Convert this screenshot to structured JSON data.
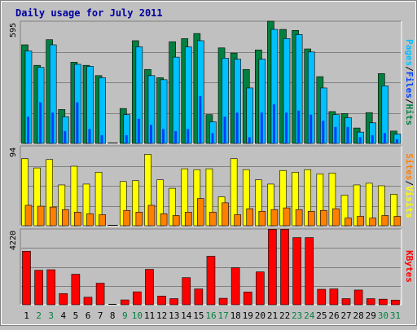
{
  "title": "Daily usage for July 2011",
  "colors": {
    "background": "#c0c0c0",
    "plot": "#c0c0c0",
    "title": "#0000a0",
    "hits": "#008040",
    "files": "#0040ff",
    "pages": "#00c0ff",
    "visits": "#ffff00",
    "sites": "#ff8000",
    "kbytes": "#ff0000",
    "weekend_day": "#008040",
    "weekday": "#000000"
  },
  "panels": {
    "top": {
      "ymax_label": "595",
      "legend": [
        {
          "text": "Pages",
          "color": "#00c0ff"
        },
        {
          "text": "/",
          "color": "#000000"
        },
        {
          "text": "Files",
          "color": "#0040ff"
        },
        {
          "text": "/",
          "color": "#000000"
        },
        {
          "text": "Hits",
          "color": "#008040"
        }
      ]
    },
    "mid": {
      "ymax_label": "94",
      "legend": [
        {
          "text": "Sites",
          "color": "#ff8000"
        },
        {
          "text": "/",
          "color": "#000000"
        },
        {
          "text": "Visits",
          "color": "#ffff00"
        }
      ]
    },
    "bottom": {
      "ymax_label": "4220",
      "legend": [
        {
          "text": "KBytes",
          "color": "#ff0000"
        }
      ]
    }
  },
  "chart_data": {
    "type": "bar",
    "title": "Daily usage for July 2011",
    "categories": [
      "1",
      "2",
      "3",
      "4",
      "5",
      "6",
      "7",
      "8",
      "9",
      "10",
      "11",
      "12",
      "13",
      "14",
      "15",
      "16",
      "17",
      "18",
      "19",
      "20",
      "21",
      "22",
      "23",
      "24",
      "25",
      "26",
      "27",
      "28",
      "29",
      "30",
      "31"
    ],
    "weekend_days": [
      "2",
      "3",
      "9",
      "10",
      "16",
      "17",
      "23",
      "24",
      "30",
      "31"
    ],
    "panels": [
      {
        "name": "hits-files-pages",
        "ylim": [
          0,
          595
        ],
        "series": [
          {
            "name": "Hits",
            "values": [
              480,
              380,
              505,
              165,
              395,
              380,
              330,
              0,
              170,
              500,
              360,
              320,
              495,
              510,
              535,
              140,
              465,
              440,
              360,
              455,
              595,
              555,
              550,
              460,
              325,
              155,
              145,
              75,
              150,
              340,
              60
            ]
          },
          {
            "name": "Files",
            "values": [
              130,
              200,
              150,
              60,
              200,
              70,
              40,
              0,
              40,
              120,
              90,
              70,
              60,
              70,
              230,
              50,
              130,
              150,
              30,
              150,
              190,
              150,
              160,
              140,
              110,
              80,
              80,
              30,
              40,
              50,
              20
            ]
          },
          {
            "name": "Pages",
            "values": [
              450,
              370,
              480,
              130,
              385,
              375,
              320,
              0,
              140,
              470,
              330,
              310,
              420,
              470,
              500,
              105,
              415,
              410,
              270,
              410,
              555,
              510,
              530,
              445,
              270,
              140,
              125,
              55,
              100,
              280,
              45
            ]
          }
        ]
      },
      {
        "name": "visits-sites",
        "ylim": [
          0,
          94
        ],
        "series": [
          {
            "name": "Visits",
            "values": [
              79,
              68,
              78,
              48,
              70,
              49,
              63,
              0,
              52,
              53,
              84,
              54,
              44,
              67,
              66,
              67,
              34,
              79,
              66,
              54,
              49,
              65,
              63,
              66,
              61,
              62,
              36,
              48,
              50,
              47,
              37
            ]
          },
          {
            "name": "Sites",
            "values": [
              24,
              23,
              22,
              19,
              16,
              14,
              13,
              0,
              18,
              16,
              24,
              14,
              12,
              16,
              32,
              16,
              27,
              13,
              20,
              17,
              19,
              21,
              19,
              17,
              18,
              20,
              9,
              11,
              9,
              12,
              11
            ]
          }
        ]
      },
      {
        "name": "kbytes",
        "ylim": [
          0,
          4220
        ],
        "series": [
          {
            "name": "KBytes",
            "values": [
              2980,
              1920,
              1950,
              620,
              1700,
              420,
              1200,
              0,
              270,
              720,
              1970,
              480,
              340,
              1510,
              880,
              2700,
              360,
              2060,
              710,
              1830,
              4200,
              4200,
              3740,
              3740,
              860,
              880,
              340,
              820,
              340,
              310,
              260
            ]
          }
        ]
      }
    ]
  }
}
